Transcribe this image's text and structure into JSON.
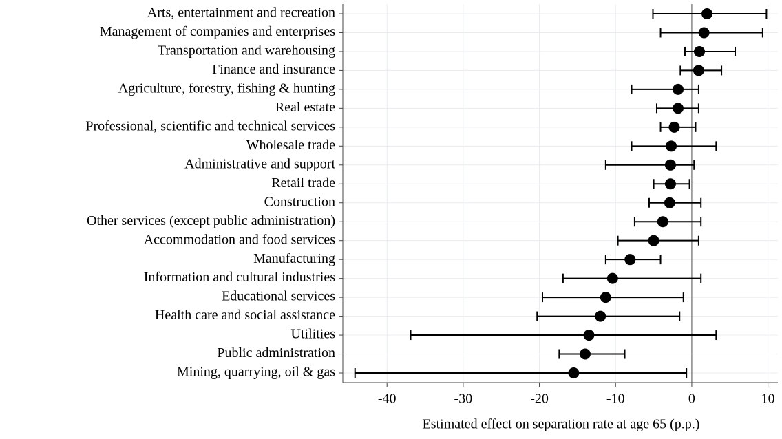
{
  "chart_data": {
    "type": "dot-errorbar",
    "categories": [
      "Arts, entertainment and recreation",
      "Management of companies and enterprises",
      "Transportation and warehousing",
      "Finance and insurance",
      "Agriculture, forestry, fishing & hunting",
      "Real estate",
      "Professional, scientific and technical services",
      "Wholesale trade",
      "Administrative and support",
      "Retail trade",
      "Construction",
      "Other services (except public administration)",
      "Accommodation and food services",
      "Manufacturing",
      "Information and cultural industries",
      "Educational services",
      "Health care and social assistance",
      "Utilities",
      "Public administration",
      "Mining, quarrying, oil & gas"
    ],
    "series": [
      {
        "color": "#000000",
        "values": [
          2.0,
          1.6,
          1.0,
          0.9,
          -1.8,
          -1.8,
          -2.3,
          -2.7,
          -2.8,
          -2.8,
          -2.9,
          -3.8,
          -5.0,
          -8.1,
          -10.4,
          -11.3,
          -12.0,
          -13.5,
          -14.0,
          -15.5
        ],
        "lower": [
          -5.1,
          -4.1,
          -0.9,
          -1.5,
          -7.9,
          -4.6,
          -4.1,
          -7.9,
          -11.3,
          -5.0,
          -5.6,
          -7.5,
          -9.7,
          -11.3,
          -16.9,
          -19.6,
          -20.3,
          -36.9,
          -17.4,
          -44.2
        ],
        "upper": [
          9.8,
          9.3,
          5.7,
          3.9,
          0.9,
          0.9,
          0.5,
          3.2,
          0.3,
          -0.3,
          1.2,
          1.2,
          0.9,
          -4.1,
          1.2,
          -1.1,
          -1.6,
          3.2,
          -8.8,
          -0.7
        ]
      }
    ],
    "x_label": "Estimated effect on separation rate at age 65 (p.p.)",
    "xlim": [
      -45.8,
      11.3
    ],
    "xticks": [
      -40,
      -30,
      -20,
      -10,
      0,
      10
    ],
    "reference_line": 0,
    "grid": true
  }
}
